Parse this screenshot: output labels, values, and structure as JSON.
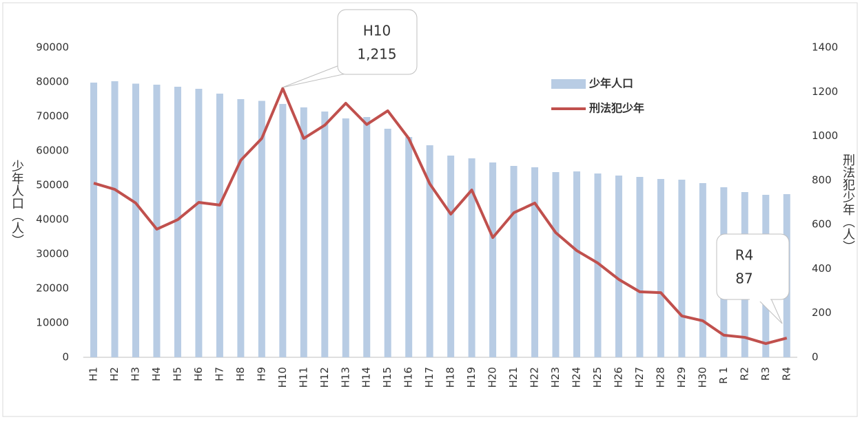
{
  "chart_data": {
    "type": "bar_line",
    "categories": [
      "H1",
      "H2",
      "H3",
      "H4",
      "H5",
      "H6",
      "H7",
      "H8",
      "H9",
      "H10",
      "H11",
      "H12",
      "H13",
      "H14",
      "H15",
      "H16",
      "H17",
      "H18",
      "H19",
      "H20",
      "H21",
      "H22",
      "H23",
      "H24",
      "H25",
      "H26",
      "H27",
      "H28",
      "H29",
      "H30",
      "R 1",
      "R2",
      "R3",
      "R4"
    ],
    "series": [
      {
        "name": "少年人口",
        "type": "bar",
        "color": "#b8cce4",
        "values": [
          79800,
          80200,
          79500,
          79200,
          78600,
          78000,
          76600,
          75000,
          74500,
          73600,
          72600,
          71400,
          69400,
          69800,
          66400,
          64000,
          61600,
          58600,
          57800,
          56600,
          55600,
          55200,
          53800,
          54000,
          53400,
          52800,
          52400,
          51800,
          51600,
          50600,
          49400,
          48000,
          47200,
          47400
        ]
      },
      {
        "name": "刑法犯少年",
        "type": "line",
        "axis": "y2",
        "color": "#c0504d",
        "values": [
          787,
          759,
          697,
          579,
          622,
          700,
          688,
          890,
          989,
          1215,
          989,
          1049,
          1148,
          1052,
          1114,
          989,
          784,
          647,
          756,
          541,
          653,
          697,
          563,
          482,
          426,
          352,
          296,
          292,
          187,
          165,
          100,
          90,
          62,
          87
        ]
      }
    ],
    "ylabel": "少年人口（人）",
    "y2label": "刑法犯少年（人）",
    "ylim": [
      0,
      90000
    ],
    "yticks": [
      0,
      10000,
      20000,
      30000,
      40000,
      50000,
      60000,
      70000,
      80000,
      90000
    ],
    "y2lim": [
      0,
      1400
    ],
    "y2ticks": [
      0,
      200,
      400,
      600,
      800,
      1000,
      1200,
      1400
    ],
    "annotations": [
      {
        "text": [
          "H10",
          "1,215"
        ]
      },
      {
        "text": [
          "R4",
          "87"
        ]
      }
    ],
    "legend": "top-right",
    "grid": false
  }
}
